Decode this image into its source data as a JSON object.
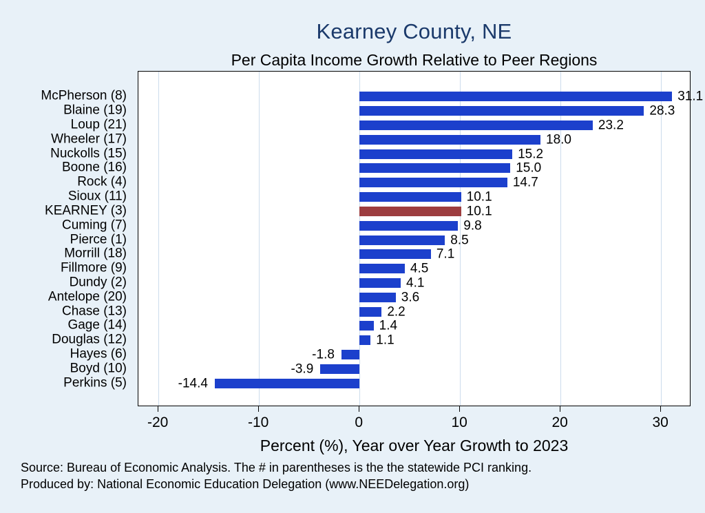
{
  "page": {
    "background": "#e8f1f8"
  },
  "header": {
    "title": "Kearney County, NE",
    "subtitle": "Per Capita Income Growth Relative to Peer Regions"
  },
  "chart_data": {
    "type": "bar",
    "orientation": "horizontal",
    "title": "Kearney County, NE",
    "subtitle": "Per Capita Income Growth Relative to Peer Regions",
    "xlabel": "Percent (%), Year over Year Growth to 2023",
    "ylabel": "",
    "categories": [
      "McPherson (8)",
      "Blaine (19)",
      "Loup (21)",
      "Wheeler (17)",
      "Nuckolls (15)",
      "Boone (16)",
      "Rock (4)",
      "Sioux (11)",
      "KEARNEY (3)",
      "Cuming (7)",
      "Pierce (1)",
      "Morrill (18)",
      "Fillmore (9)",
      "Dundy (2)",
      "Antelope (20)",
      "Chase (13)",
      "Gage (14)",
      "Douglas (12)",
      "Hayes (6)",
      "Boyd (10)",
      "Perkins (5)"
    ],
    "values": [
      31.1,
      28.3,
      23.2,
      18.0,
      15.2,
      15.0,
      14.7,
      10.1,
      10.1,
      9.8,
      8.5,
      7.1,
      4.5,
      4.1,
      3.6,
      2.2,
      1.4,
      1.1,
      -1.8,
      -3.9,
      -14.4
    ],
    "highlight_category": "KEARNEY (3)",
    "highlight_index": 8,
    "xticks": [
      -20,
      -10,
      0,
      10,
      20,
      30
    ],
    "xlim": [
      -22,
      33
    ],
    "grid": true,
    "value_label_decimals": 1,
    "colors": {
      "bar": "#1c40cc",
      "highlight": "#9d3d3f",
      "title": "#1b3a6b",
      "background": "#e8f1f8",
      "plot_background": "#ffffff",
      "gridline": "#ccdcec",
      "axis": "#000000"
    }
  },
  "footer": {
    "line1": "Source: Bureau of Economic Analysis. The # in parentheses is the the statewide PCI ranking.",
    "line2": "Produced by: National Economic Education Delegation (www.NEEDelegation.org)"
  }
}
